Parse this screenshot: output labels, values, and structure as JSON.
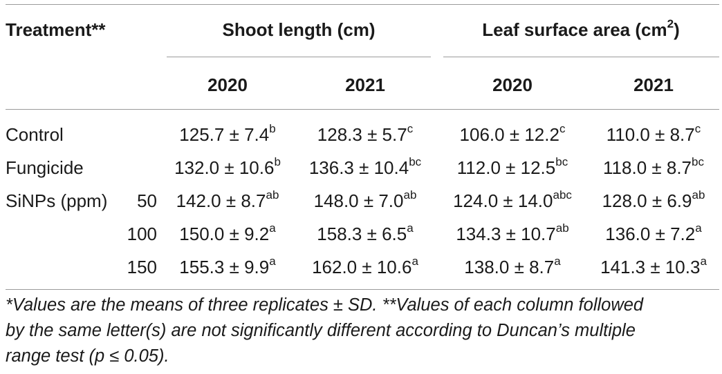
{
  "table": {
    "header": {
      "treatment": "Treatment**",
      "group1": "Shoot length (cm)",
      "group2_prefix": "Leaf surface area (cm",
      "group2_sup": "2",
      "group2_suffix": ")",
      "years": [
        "2020",
        "2021",
        "2020",
        "2021"
      ]
    },
    "rows": [
      {
        "label": "Control",
        "sublabel": "",
        "cells": [
          {
            "v": "125.7 ± 7.4",
            "s": "b"
          },
          {
            "v": "128.3 ± 5.7",
            "s": "c"
          },
          {
            "v": "106.0 ± 12.2",
            "s": "c"
          },
          {
            "v": "110.0 ± 8.7",
            "s": "c"
          }
        ]
      },
      {
        "label": "Fungicide",
        "sublabel": "",
        "cells": [
          {
            "v": "132.0 ± 10.6",
            "s": "b"
          },
          {
            "v": "136.3 ± 10.4",
            "s": "bc"
          },
          {
            "v": "112.0 ± 12.5",
            "s": "bc"
          },
          {
            "v": "118.0 ± 8.7",
            "s": "bc"
          }
        ]
      },
      {
        "label": "SiNPs (ppm)",
        "sublabel": "50",
        "cells": [
          {
            "v": "142.0 ± 8.7",
            "s": "ab"
          },
          {
            "v": "148.0 ± 7.0",
            "s": "ab"
          },
          {
            "v": "124.0 ± 14.0",
            "s": "abc"
          },
          {
            "v": "128.0 ± 6.9",
            "s": "ab"
          }
        ]
      },
      {
        "label": "",
        "sublabel": "100",
        "cells": [
          {
            "v": "150.0 ± 9.2",
            "s": "a"
          },
          {
            "v": "158.3 ± 6.5",
            "s": "a"
          },
          {
            "v": "134.3 ± 10.7",
            "s": "ab"
          },
          {
            "v": "136.0 ± 7.2",
            "s": "a"
          }
        ]
      },
      {
        "label": "",
        "sublabel": "150",
        "cells": [
          {
            "v": "155.3 ± 9.9",
            "s": "a"
          },
          {
            "v": "162.0 ± 10.6",
            "s": "a"
          },
          {
            "v": "138.0 ± 8.7",
            "s": "a"
          },
          {
            "v": "141.3 ± 10.3",
            "s": "a"
          }
        ]
      }
    ]
  },
  "footnote": {
    "line1": "*Values are the means of three replicates ± SD. **Values of each column followed",
    "line2": "by the same letter(s) are not significantly different according to Duncan’s multiple",
    "line3": "range test (p ≤ 0.05)."
  }
}
